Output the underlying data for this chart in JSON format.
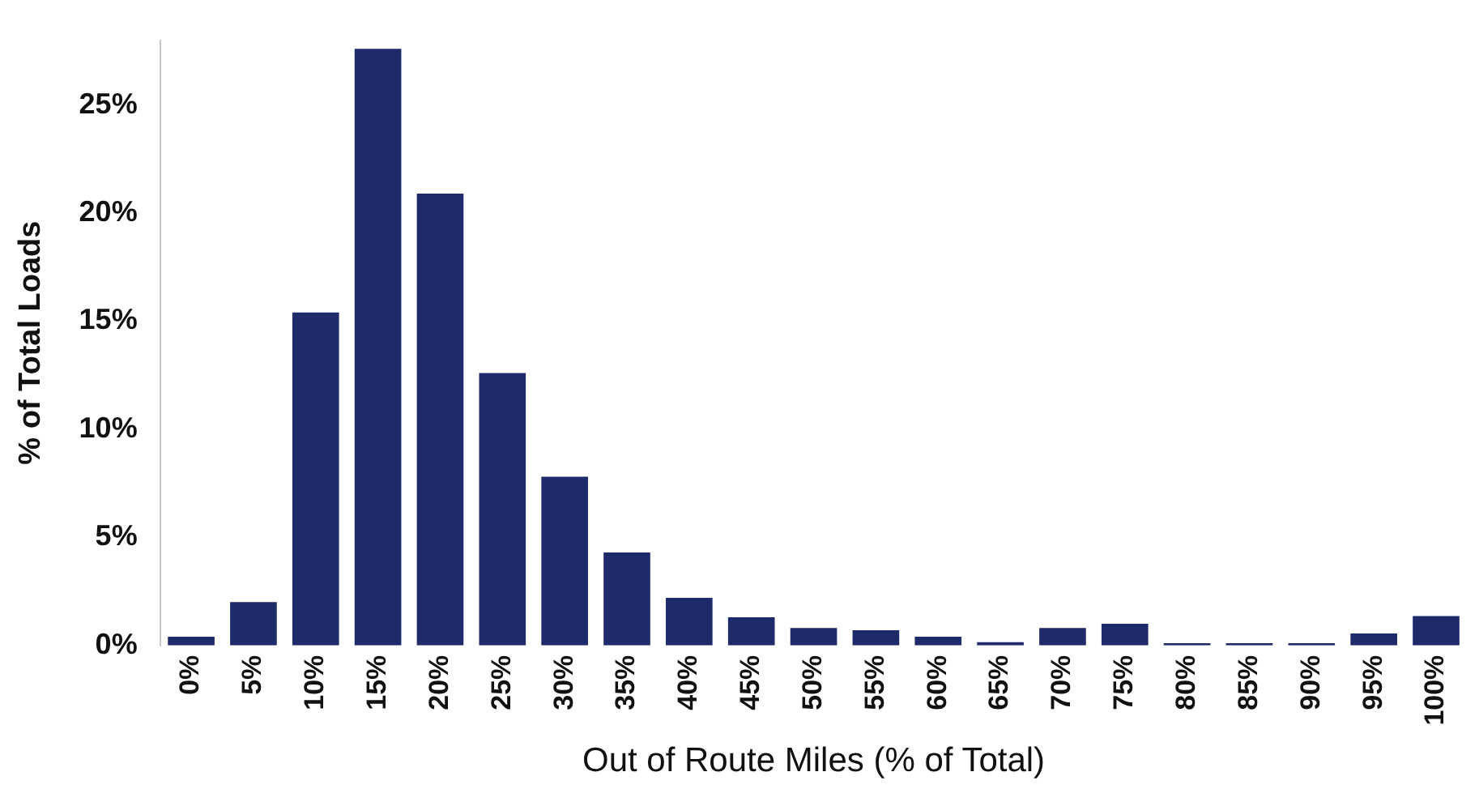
{
  "chart_data": {
    "type": "bar",
    "xlabel": "Out of Route Miles (% of Total)",
    "ylabel": "% of Total Loads",
    "categories": [
      "0%",
      "5%",
      "10%",
      "15%",
      "20%",
      "25%",
      "30%",
      "35%",
      "40%",
      "45%",
      "50%",
      "55%",
      "60%",
      "65%",
      "70%",
      "75%",
      "80%",
      "85%",
      "90%",
      "95%",
      "100%"
    ],
    "values": [
      0.4,
      2.0,
      15.4,
      27.6,
      20.9,
      12.6,
      7.8,
      4.3,
      2.2,
      1.3,
      0.8,
      0.7,
      0.4,
      0.15,
      0.8,
      1.0,
      0.1,
      0.1,
      0.1,
      0.55,
      1.35
    ],
    "color": "#1f2a6b",
    "ylim": [
      0,
      28
    ],
    "yticks": [
      {
        "value": 0,
        "label": "0%"
      },
      {
        "value": 5,
        "label": "5%"
      },
      {
        "value": 10,
        "label": "10%"
      },
      {
        "value": 15,
        "label": "15%"
      },
      {
        "value": 20,
        "label": "20%"
      },
      {
        "value": 25,
        "label": "25%"
      }
    ],
    "grid": false,
    "legend": false
  }
}
